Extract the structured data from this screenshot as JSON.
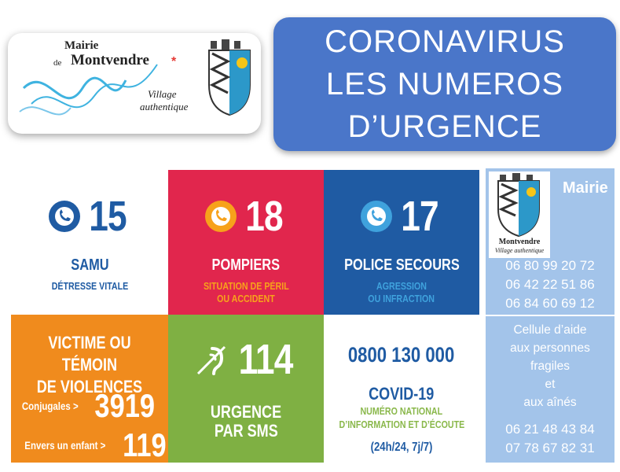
{
  "logo": {
    "mairie": "Mairie",
    "de": "de",
    "name": "Montvendre",
    "asterisk": "*",
    "village": "Village",
    "authentique": "authentique"
  },
  "title": {
    "line1": "CORONAVIRUS",
    "line2": "LES NUMEROS",
    "line3": "D’URGENCE"
  },
  "samu": {
    "number": "15",
    "label": "SAMU",
    "sub": "DÉTRESSE VITALE",
    "icon": "phone-icon",
    "color": "#1f5ba3"
  },
  "pompiers": {
    "number": "18",
    "label": "POMPIERS",
    "sub1": "SITUATION DE PÉRIL",
    "sub2": "OU ACCIDENT",
    "icon": "phone-icon",
    "color": "#e1264d",
    "sub_color": "#f7a21b"
  },
  "police": {
    "number": "17",
    "label": "POLICE SECOURS",
    "sub1": "AGRESSION",
    "sub2": "OU INFRACTION",
    "icon": "phone-icon",
    "color": "#1f5ba3",
    "sub_color": "#3fa2dd"
  },
  "violences": {
    "line1": "VICTIME OU TÉMOIN",
    "line2": "DE VIOLENCES",
    "conj_label": "Conjugales >",
    "conj_number": "3919",
    "enfant_label": "Envers un enfant >",
    "enfant_number": "119",
    "color": "#f08b1d"
  },
  "sms": {
    "number": "114",
    "label1": "URGENCE",
    "label2": "PAR SMS",
    "icon": "deaf-ear-icon",
    "color": "#7fb043"
  },
  "covid": {
    "phone": "0800 130 000",
    "label": "COVID-19",
    "sub1": "NUMÉRO NATIONAL",
    "sub2": "D’INFORMATION ET D’ÉCOUTE",
    "hours": "(24h/24, 7j/7)"
  },
  "mairie": {
    "title": "Mairie",
    "crest_name": "Montvendre",
    "crest_sub": "Village authentique",
    "phones": [
      "06 80 99 20 72",
      "06 42 22 51 86",
      "06 84 60 69 12"
    ]
  },
  "cellule": {
    "lines": [
      "Cellule d’aide",
      "aux personnes",
      "fragiles",
      "et",
      "aux aînés"
    ],
    "phones": [
      "06 21 48 43 84",
      "07 78 67 82 31"
    ]
  }
}
